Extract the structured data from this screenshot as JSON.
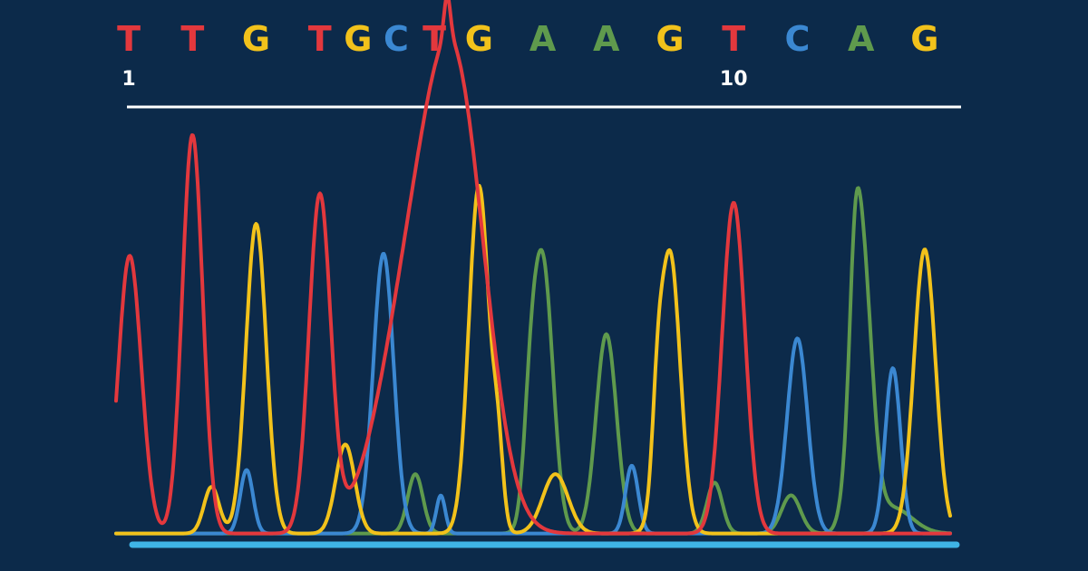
{
  "colors": {
    "background": "#0c2a4a",
    "A": "#5f9a4d",
    "C": "#3b88d2",
    "G": "#f2c21b",
    "T": "#e3383d",
    "divider": "#ffffff",
    "baseline": "#3fb4e6"
  },
  "chart_data": {
    "type": "line",
    "title": "",
    "xlabel": "",
    "ylabel": "",
    "sequence": [
      {
        "base": "T",
        "x": 1
      },
      {
        "base": "T",
        "x": 2
      },
      {
        "base": "G",
        "x": 3
      },
      {
        "base": "T",
        "x": 4
      },
      {
        "base": "G",
        "x": 4.6
      },
      {
        "base": "C",
        "x": 5.2
      },
      {
        "base": "T",
        "x": 5.8
      },
      {
        "base": "G",
        "x": 6.5
      },
      {
        "base": "A",
        "x": 7.5
      },
      {
        "base": "A",
        "x": 8.5
      },
      {
        "base": "G",
        "x": 9.5
      },
      {
        "base": "T",
        "x": 10.5
      },
      {
        "base": "C",
        "x": 11.5
      },
      {
        "base": "A",
        "x": 12.5
      },
      {
        "base": "G",
        "x": 13.5
      }
    ],
    "position_labels": [
      {
        "label": "1",
        "x": 1
      },
      {
        "label": "10",
        "x": 10.5
      }
    ],
    "xlim": [
      0.8,
      13.9
    ],
    "ylim": [
      0,
      100
    ],
    "series": [
      {
        "base": "T",
        "peaks": [
          {
            "x": 1.0,
            "h": 62,
            "w": 0.17
          },
          {
            "x": 2.0,
            "h": 94,
            "w": 0.16
          },
          {
            "x": 4.0,
            "h": 79,
            "w": 0.17
          },
          {
            "x": 5.55,
            "h": 62,
            "w": 0.55
          },
          {
            "x": 6.2,
            "h": 80,
            "w": 0.45
          },
          {
            "x": 10.5,
            "h": 78,
            "w": 0.18
          },
          {
            "x": 1.2,
            "h": 8,
            "w": 0.15
          },
          {
            "x": 6.0,
            "h": 10,
            "w": 0.05
          }
        ]
      },
      {
        "base": "G",
        "peaks": [
          {
            "x": 3.0,
            "h": 73,
            "w": 0.16
          },
          {
            "x": 6.5,
            "h": 82,
            "w": 0.16
          },
          {
            "x": 9.5,
            "h": 66,
            "w": 0.16
          },
          {
            "x": 13.5,
            "h": 67,
            "w": 0.17
          },
          {
            "x": 2.3,
            "h": 11,
            "w": 0.12
          },
          {
            "x": 4.4,
            "h": 21,
            "w": 0.15
          },
          {
            "x": 6.8,
            "h": 16,
            "w": 0.08
          },
          {
            "x": 7.7,
            "h": 14,
            "w": 0.2
          },
          {
            "x": 9.3,
            "h": 16,
            "w": 0.08
          }
        ]
      },
      {
        "base": "C",
        "peaks": [
          {
            "x": 5.0,
            "h": 66,
            "w": 0.16
          },
          {
            "x": 11.5,
            "h": 46,
            "w": 0.16
          },
          {
            "x": 13.0,
            "h": 39,
            "w": 0.12
          },
          {
            "x": 2.85,
            "h": 15,
            "w": 0.1
          },
          {
            "x": 5.9,
            "h": 9,
            "w": 0.07
          },
          {
            "x": 8.9,
            "h": 16,
            "w": 0.1
          }
        ]
      },
      {
        "base": "A",
        "peaks": [
          {
            "x": 7.5,
            "h": 64,
            "w": 0.16
          },
          {
            "x": 8.5,
            "h": 47,
            "w": 0.16
          },
          {
            "x": 12.5,
            "h": 68,
            "w": 0.16
          },
          {
            "x": 5.5,
            "h": 14,
            "w": 0.12
          },
          {
            "x": 7.3,
            "h": 17,
            "w": 0.1
          },
          {
            "x": 10.2,
            "h": 12,
            "w": 0.12
          },
          {
            "x": 11.4,
            "h": 9,
            "w": 0.15
          },
          {
            "x": 12.4,
            "h": 19,
            "w": 0.08
          },
          {
            "x": 13.0,
            "h": 6,
            "w": 0.3
          }
        ]
      }
    ]
  }
}
